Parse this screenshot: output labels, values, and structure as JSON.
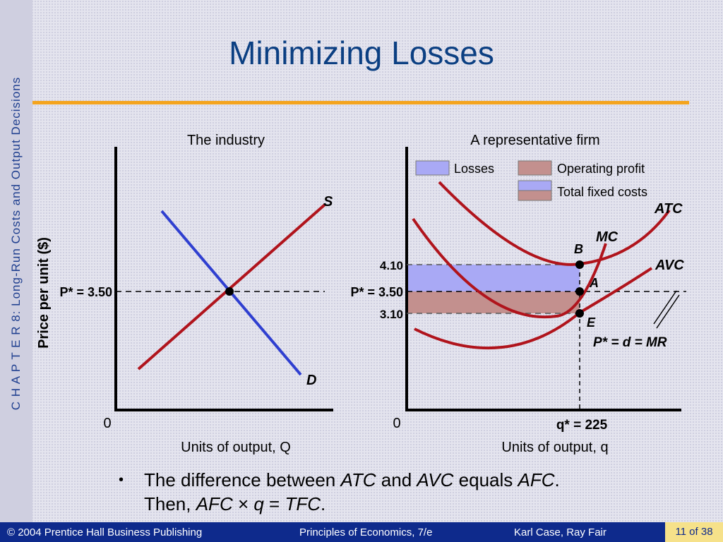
{
  "side": {
    "text": "C H A P T E R  8:  Long-Run Costs and Output Decisions"
  },
  "title": "Minimizing Losses",
  "left_panel": {
    "title": "The industry",
    "y_axis_label": "Price per unit ($)",
    "price_label": "P* = 3.50",
    "origin": "0",
    "x_axis_label": "Units of output, Q",
    "supply_label": "S",
    "demand_label": "D"
  },
  "right_panel": {
    "title": "A representative firm",
    "legend": {
      "losses": "Losses",
      "operating_profit": "Operating profit",
      "total_fixed_costs": "Total fixed costs"
    },
    "curves": {
      "atc": "ATC",
      "mc": "MC",
      "avc": "AVC"
    },
    "points": {
      "b": "B",
      "a": "A",
      "e": "E"
    },
    "price_labels": {
      "high": "4.10",
      "mid": "P* = 3.50",
      "low": "3.10"
    },
    "mr_label": "P* = d = MR",
    "q_label": "q* = 225",
    "origin": "0",
    "x_axis_label": "Units of output, q"
  },
  "colors": {
    "losses": "#a9a9f5",
    "operating_profit": "#c3908e",
    "curve_red": "#b0141c",
    "curve_blue": "#2f3fd0",
    "accent_orange": "#f4a41e",
    "footer_blue": "#0e2a8c"
  },
  "bullet": {
    "line1_a": "The difference between ",
    "line1_atc": "ATC",
    "line1_and": " and ",
    "line1_avc": "AVC",
    "line1_equals": " equals ",
    "line1_afc": "AFC",
    "line1_end": ".",
    "line2_then": "Then, ",
    "line2_afc": "AFC",
    "line2_times": " × ",
    "line2_q": "q",
    "line2_eq": " = ",
    "line2_tfc": "TFC",
    "line2_end": "."
  },
  "footer": {
    "copyright": "© 2004 Prentice Hall Business Publishing",
    "book": "Principles of Economics, 7/e",
    "authors": "Karl Case, Ray Fair",
    "page": "11 of 38"
  }
}
